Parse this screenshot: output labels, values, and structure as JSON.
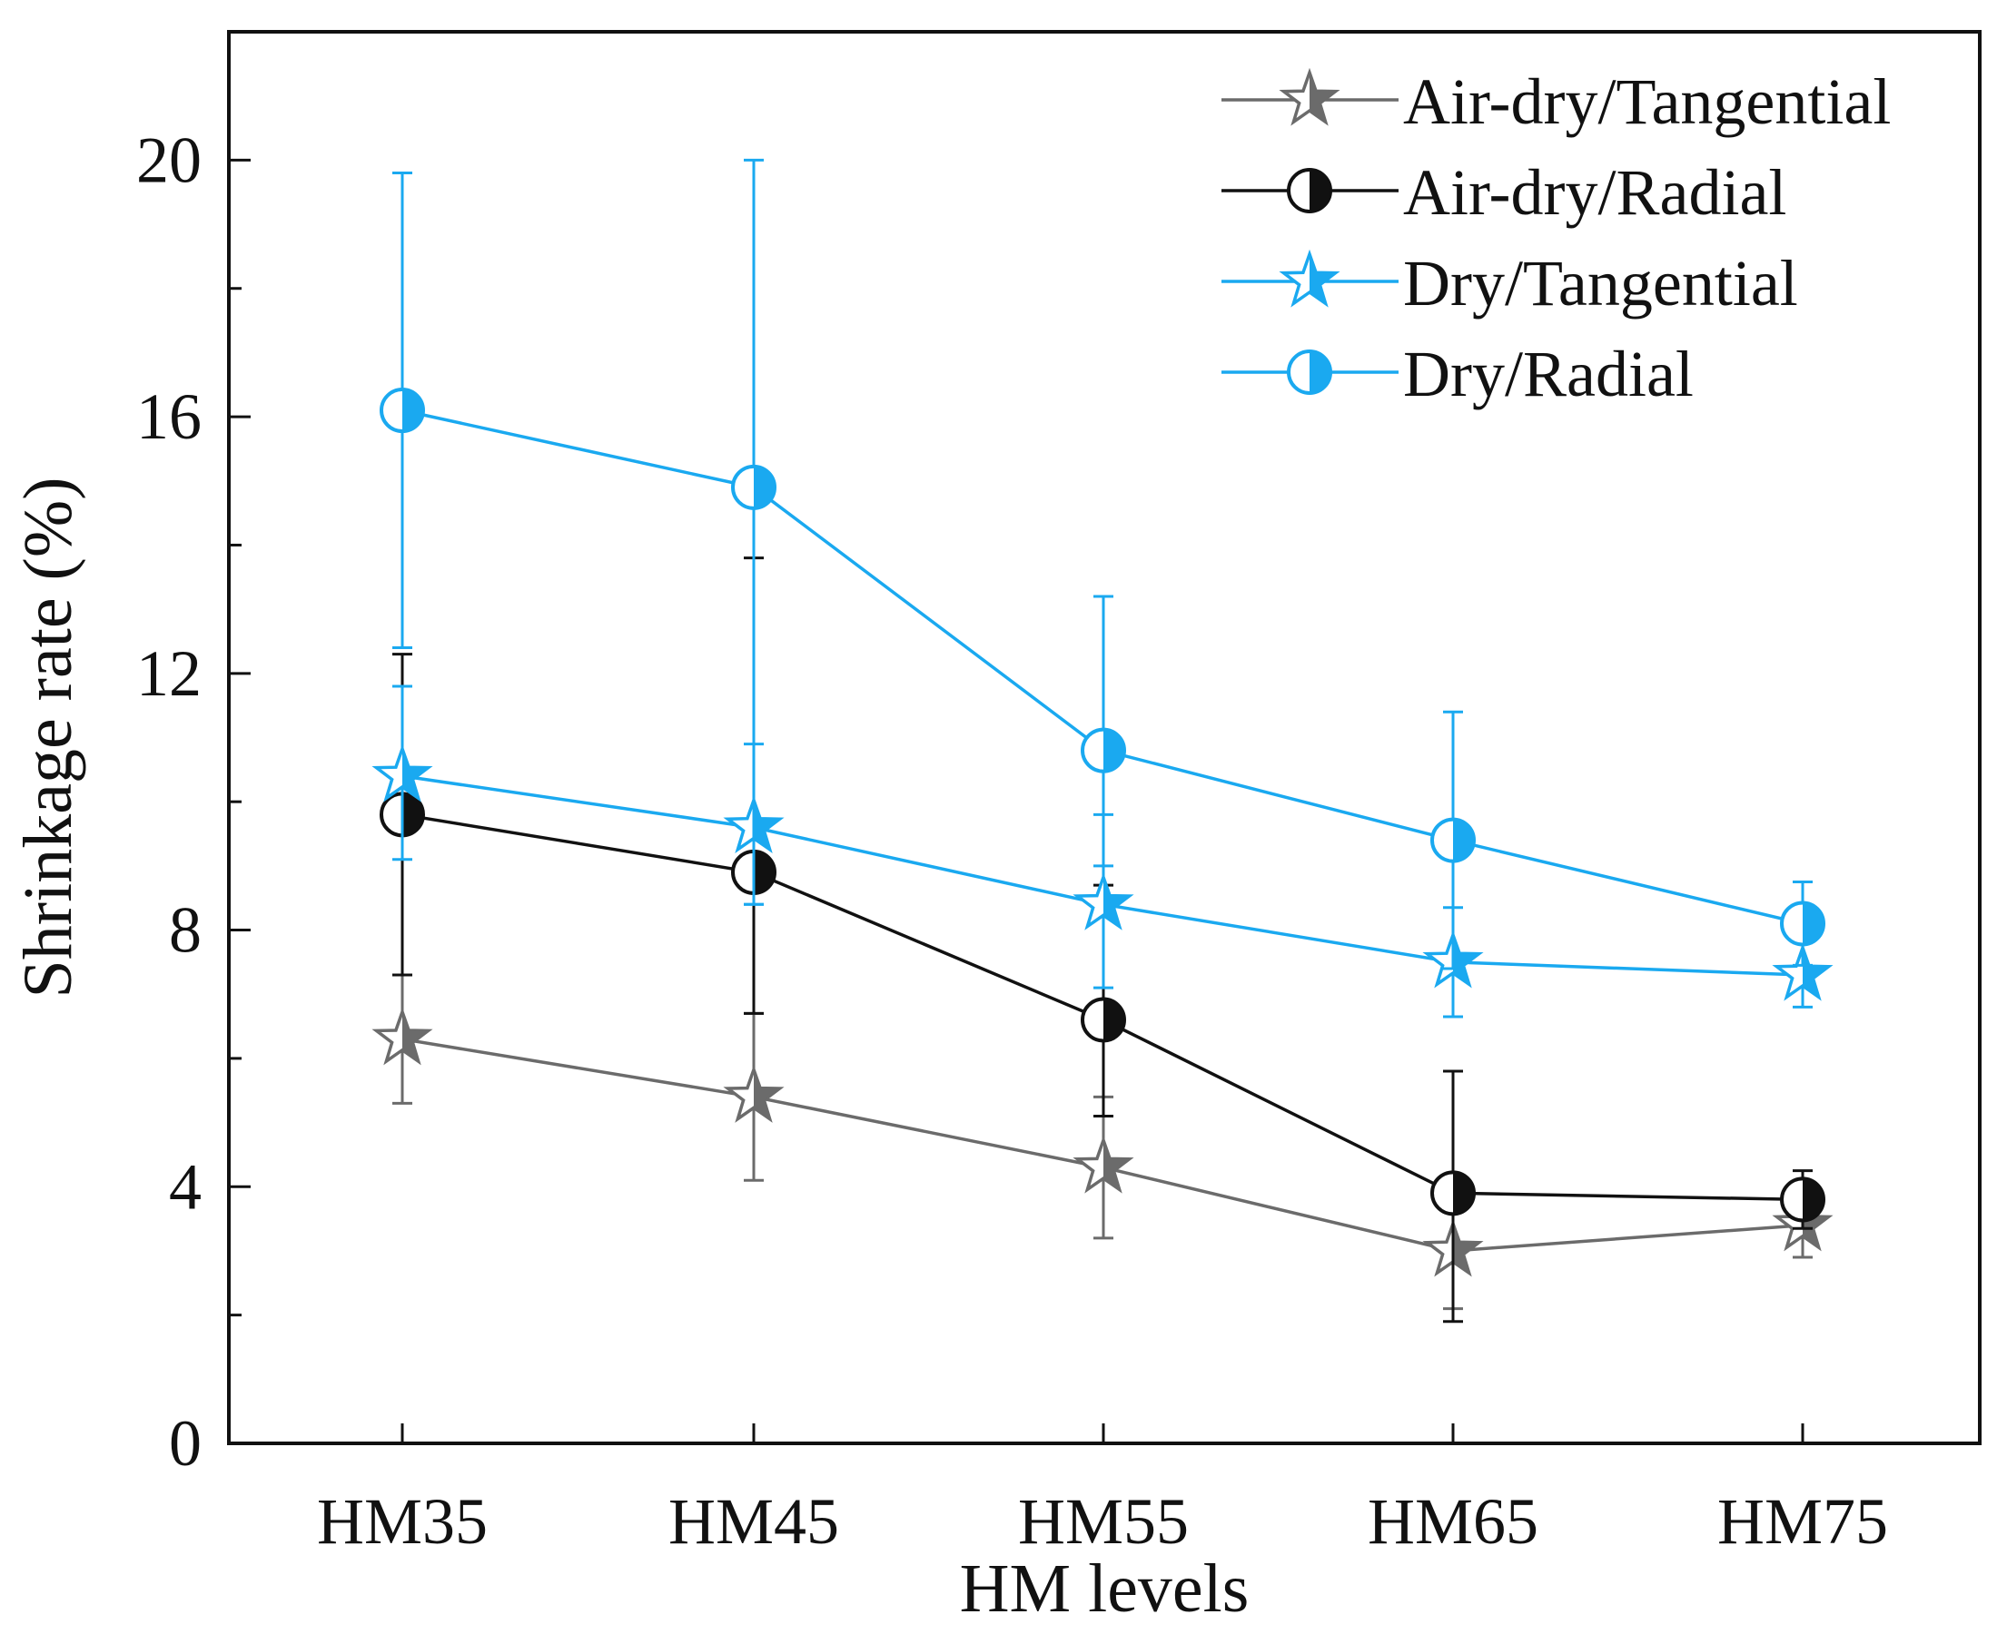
{
  "chart_data": {
    "type": "line",
    "title": "",
    "xlabel": "HM levels",
    "ylabel": "Shrinkage rate (%)",
    "categories": [
      "HM35",
      "HM45",
      "HM55",
      "HM65",
      "HM75"
    ],
    "ylim": [
      0,
      22
    ],
    "yticks": [
      0,
      4,
      8,
      12,
      16,
      20
    ],
    "grid": false,
    "legend_position": "top-right",
    "series": [
      {
        "name": "Air-dry/Tangential",
        "color": "#6b6b6b",
        "marker": "star-half",
        "values": [
          6.3,
          5.4,
          4.3,
          3.0,
          3.4
        ],
        "err_low": [
          1.0,
          1.3,
          1.1,
          0.9,
          0.5
        ],
        "err_high": [
          1.0,
          1.3,
          1.1,
          0.9,
          0.5
        ]
      },
      {
        "name": "Air-dry/Radial",
        "color": "#111111",
        "marker": "circle-half",
        "values": [
          9.8,
          8.9,
          6.6,
          3.9,
          3.8
        ],
        "err_low": [
          2.5,
          2.2,
          1.5,
          2.0,
          0.45
        ],
        "err_high": [
          2.5,
          4.9,
          2.1,
          1.9,
          0.45
        ]
      },
      {
        "name": "Dry/Tangential",
        "color": "#1aa9f0",
        "marker": "star-half",
        "values": [
          10.4,
          9.6,
          8.4,
          7.5,
          7.3
        ],
        "err_low": [
          1.3,
          1.2,
          1.3,
          0.85,
          0.5
        ],
        "err_high": [
          1.4,
          1.3,
          1.4,
          0.85,
          0.5
        ]
      },
      {
        "name": "Dry/Radial",
        "color": "#1aa9f0",
        "marker": "circle-half",
        "values": [
          16.1,
          14.9,
          10.8,
          9.4,
          8.1
        ],
        "err_low": [
          3.7,
          6.5,
          1.8,
          2.0,
          0.65
        ],
        "err_high": [
          3.7,
          5.1,
          2.4,
          2.0,
          0.65
        ]
      }
    ]
  }
}
